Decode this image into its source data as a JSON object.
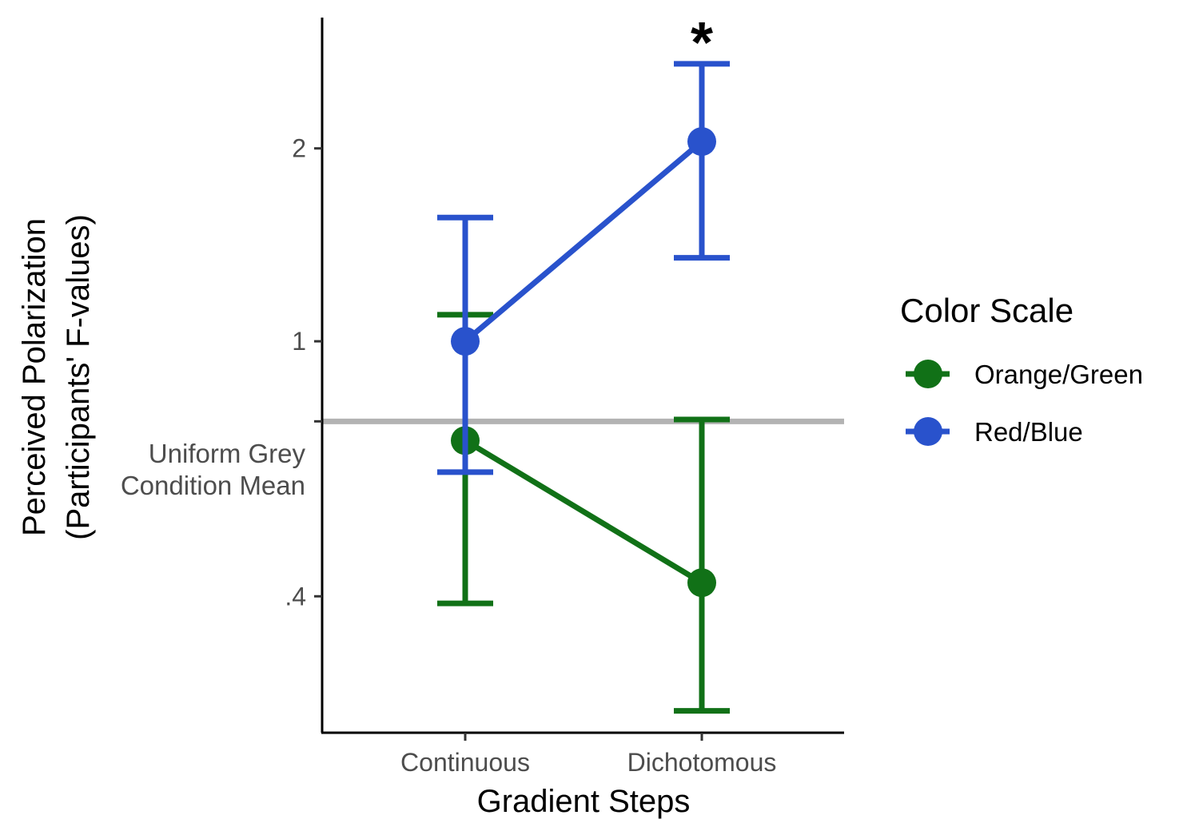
{
  "chart_data": {
    "type": "line",
    "title": "",
    "xlabel": "Gradient Steps",
    "ylabel_line1": "Perceived Polarization",
    "ylabel_line2": "(Participants' F-values)",
    "y_scale": "log",
    "ylim": [
      0.245,
      3.2
    ],
    "categories": [
      "Continuous",
      "Dichotomous"
    ],
    "y_ticks": [
      {
        "value": 0.4,
        "label": ".4"
      },
      {
        "value": 1,
        "label": "1"
      },
      {
        "value": 2,
        "label": "2"
      }
    ],
    "reference_line": {
      "value": 0.75,
      "label_line1": "Uniform Grey",
      "label_line2": "Condition Mean",
      "color": "#b3b3b3"
    },
    "legend": {
      "title": "Color Scale",
      "position": "right"
    },
    "series": [
      {
        "name": "Orange/Green",
        "color": "#117117",
        "values": [
          0.7,
          0.42
        ],
        "ci_low": [
          0.39,
          0.265
        ],
        "ci_high": [
          1.1,
          0.755
        ]
      },
      {
        "name": "Red/Blue",
        "color": "#2952cc",
        "values": [
          1.0,
          2.05
        ],
        "ci_low": [
          0.625,
          1.35
        ],
        "ci_high": [
          1.56,
          2.71
        ]
      }
    ],
    "annotations": [
      {
        "text": "*",
        "category": "Dichotomous"
      }
    ],
    "grid": false
  }
}
